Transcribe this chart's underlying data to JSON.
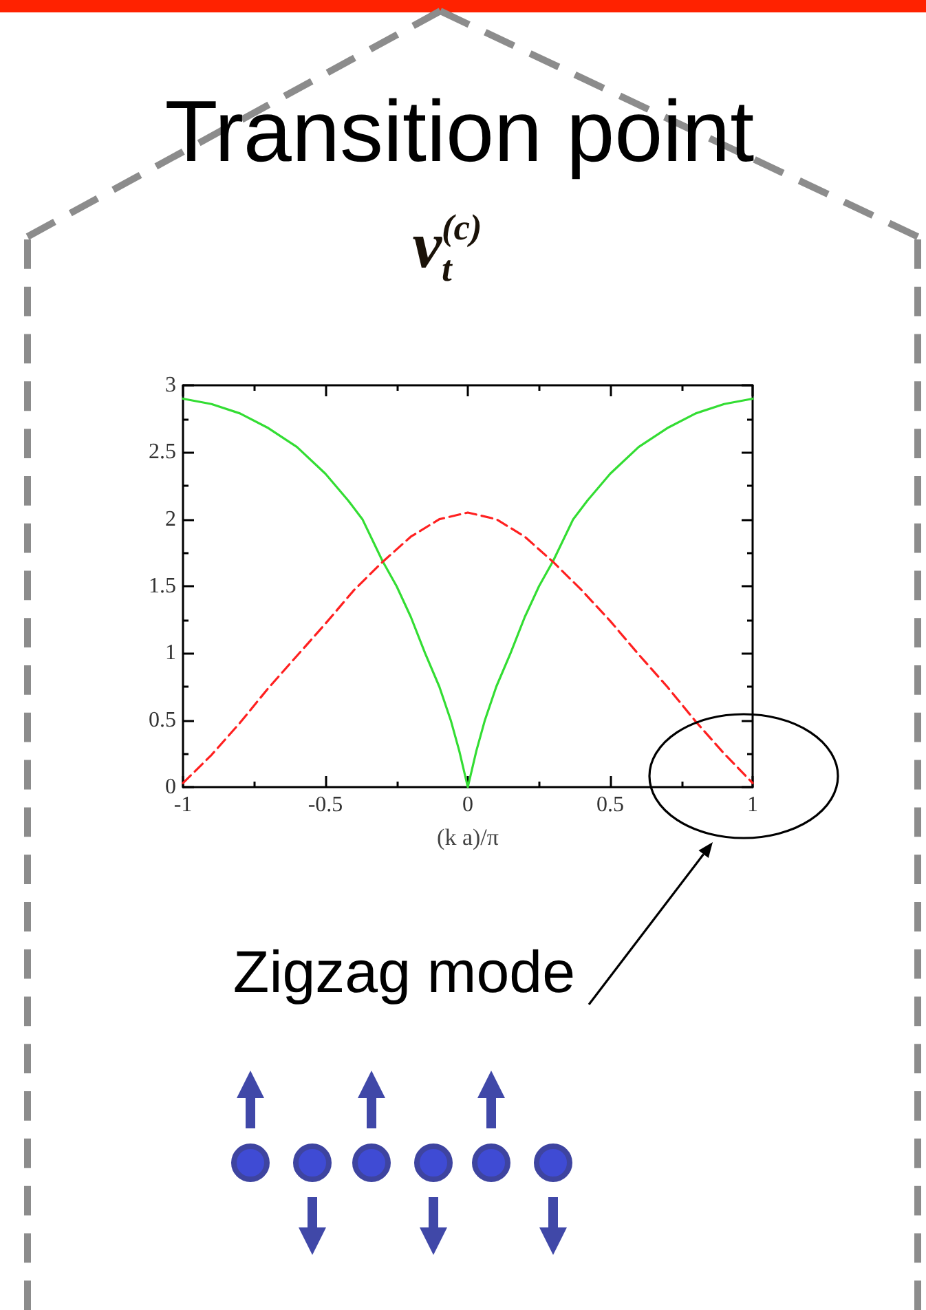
{
  "chart_data": {
    "type": "line",
    "title": "Transition point",
    "subtitle": "ν$_{t}$$^{(c)}$",
    "xlabel": "(k a)/π",
    "annotations": [
      "Zigzag mode"
    ],
    "xlim": [
      -1,
      1
    ],
    "xticks": [
      -1,
      {
        "value": -0.75,
        "label": null
      },
      -0.5,
      {
        "value": -0.25,
        "label": null
      },
      0,
      {
        "value": 0.25,
        "label": null
      },
      0.5,
      {
        "value": 0.75,
        "label": null
      },
      1
    ],
    "ylim": [
      0,
      3
    ],
    "yticks": [
      0,
      {
        "value": 0.25,
        "label": null
      },
      0.5,
      {
        "value": 0.75,
        "label": null
      },
      1,
      {
        "value": 1.25,
        "label": null
      },
      1.5,
      {
        "value": 1.75,
        "label": null
      },
      2,
      {
        "value": 2.25,
        "label": null
      },
      2.5,
      {
        "value": 2.75,
        "label": null
      },
      3
    ],
    "grid": false,
    "marker": "none",
    "series": [
      {
        "color": "#33dd33",
        "line_style": "solid",
        "x": [
          -1,
          -0.9,
          -0.8,
          -0.7,
          -0.6,
          -0.5,
          -0.42,
          -0.37,
          -0.3,
          -0.25,
          -0.2,
          -0.15,
          -0.1,
          -0.06,
          -0.03,
          0,
          0.03,
          0.06,
          0.1,
          0.15,
          0.2,
          0.25,
          0.3,
          0.37,
          0.42,
          0.5,
          0.6,
          0.7,
          0.8,
          0.9,
          1
        ],
        "values": [
          2.9,
          2.86,
          2.79,
          2.68,
          2.54,
          2.34,
          2.14,
          2.0,
          1.69,
          1.5,
          1.27,
          1.0,
          0.75,
          0.5,
          0.27,
          0,
          0.27,
          0.5,
          0.75,
          1.0,
          1.27,
          1.5,
          1.69,
          2.0,
          2.14,
          2.34,
          2.54,
          2.68,
          2.79,
          2.86,
          2.9
        ]
      },
      {
        "color": "#ff2020",
        "line_style": "dashed",
        "x": [
          -1,
          -0.9,
          -0.8,
          -0.7,
          -0.6,
          -0.5,
          -0.4,
          -0.3,
          -0.2,
          -0.1,
          0,
          0.1,
          0.2,
          0.3,
          0.4,
          0.5,
          0.6,
          0.7,
          0.8,
          0.9,
          1
        ],
        "values": [
          0.03,
          0.24,
          0.48,
          0.74,
          0.98,
          1.22,
          1.47,
          1.68,
          1.87,
          2.0,
          2.05,
          2.0,
          1.87,
          1.68,
          1.47,
          1.24,
          0.99,
          0.75,
          0.49,
          0.25,
          0.03
        ]
      }
    ]
  }
}
